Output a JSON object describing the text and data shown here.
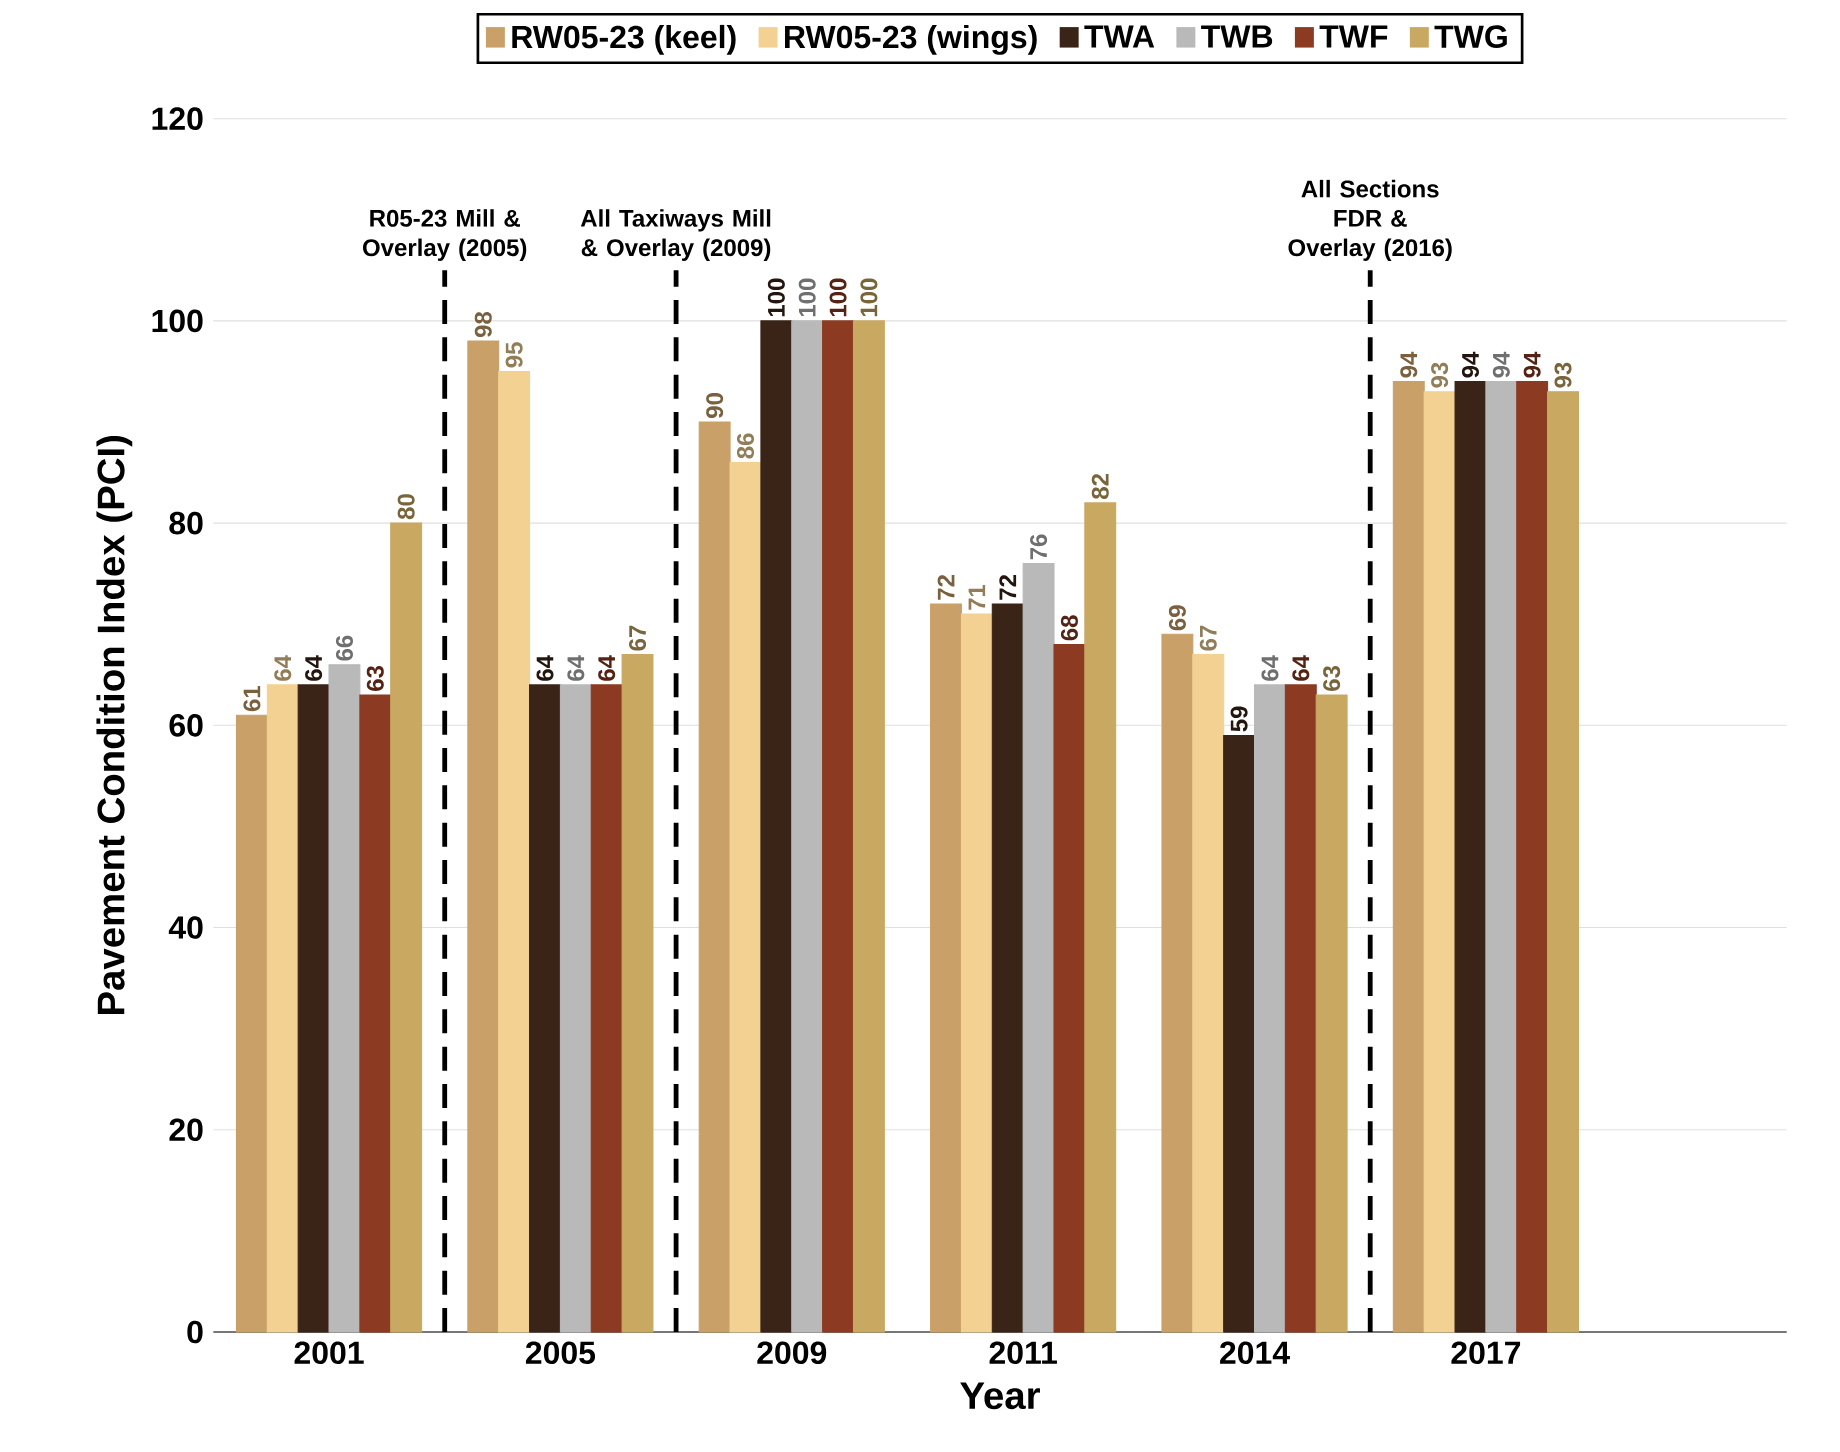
{
  "chart_data": {
    "type": "bar",
    "xlabel": "Year",
    "ylabel": "Pavement Condition Index (PCI)",
    "categories": [
      "2001",
      "2005",
      "2009",
      "2011",
      "2014",
      "2017"
    ],
    "series": [
      {
        "name": "RW05-23 (keel)",
        "color": "#c9a067",
        "values": [
          61,
          98,
          90,
          72,
          69,
          94
        ]
      },
      {
        "name": "RW05-23 (wings)",
        "color": "#f2d193",
        "values": [
          64,
          95,
          86,
          71,
          67,
          93
        ]
      },
      {
        "name": "TWA",
        "color": "#3a2417",
        "values": [
          64,
          64,
          100,
          72,
          59,
          94
        ]
      },
      {
        "name": "TWB",
        "color": "#b9b9b9",
        "values": [
          66,
          64,
          100,
          76,
          64,
          94
        ]
      },
      {
        "name": "TWF",
        "color": "#8c3b22",
        "values": [
          63,
          64,
          100,
          68,
          64,
          94
        ]
      },
      {
        "name": "TWG",
        "color": "#c9a862",
        "values": [
          80,
          67,
          100,
          82,
          63,
          93
        ]
      }
    ],
    "ylim": [
      0,
      120
    ],
    "yticks": [
      0,
      20,
      40,
      60,
      80,
      100,
      120
    ],
    "grid": "y",
    "legend": "top",
    "data_labels": true,
    "annotations": [
      "R05-23 Mill & Overlay (2005)",
      "All Taxiways Mill & Overlay (2009)",
      "All Sections FDR & Overlay (2016)"
    ]
  }
}
